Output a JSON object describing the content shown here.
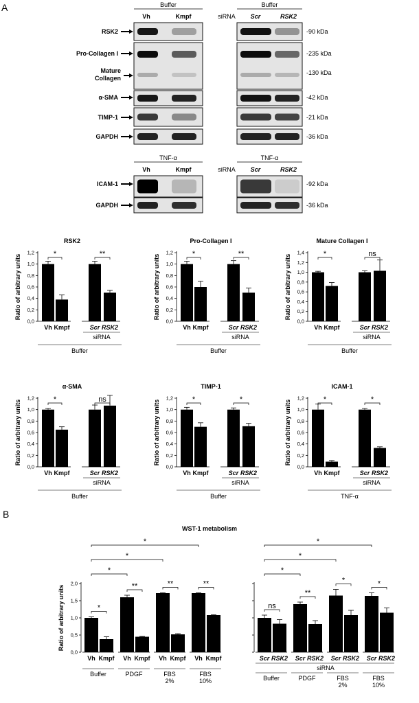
{
  "panels": {
    "a": "A",
    "b": "B"
  },
  "blots": {
    "row_labels": [
      "RSK2",
      "Pro-Collagen I",
      "Mature Collagen I",
      "α-SMA",
      "TIMP-1",
      "GAPDH",
      "ICAM-1",
      "GAPDH"
    ],
    "left_condition_top": "Buffer",
    "right_condition_top": "Buffer",
    "left_condition_bottom": "TNF-α",
    "right_condition_bottom": "TNF-α",
    "left_lanes": [
      "Vh",
      "Kmpf"
    ],
    "right_lanes": [
      "Scr",
      "RSK2"
    ],
    "sirna_label": "siRNA",
    "kda_markers": [
      "-90 kDa",
      "-235 kDa",
      "-130 kDa",
      "-42 kDa",
      "-21 kDa",
      "-36 kDa",
      "-92 kDa",
      "-36 kDa"
    ]
  },
  "chart_data": [
    {
      "type": "bar",
      "title": "RSK2",
      "ylabel": "Ratio of arbitrary units",
      "ylim": [
        0,
        1.2
      ],
      "yticks": [
        "0,0",
        "0,2",
        "0,4",
        "0,6",
        "0,8",
        "1,0",
        "1,2"
      ],
      "categories": [
        "Vh",
        "Kmpf",
        "Scr",
        "RSK2"
      ],
      "values": [
        1.0,
        0.38,
        1.0,
        0.5
      ],
      "errors": [
        0.05,
        0.08,
        0.05,
        0.04
      ],
      "significance": [
        "*",
        "**"
      ],
      "group_labels": [
        "siRNA"
      ],
      "condition": "Buffer"
    },
    {
      "type": "bar",
      "title": "Pro-Collagen I",
      "ylabel": "Ratio of arbitrary units",
      "ylim": [
        0,
        1.2
      ],
      "yticks": [
        "0,0",
        "0,2",
        "0,4",
        "0,6",
        "0,8",
        "1,0",
        "1,2"
      ],
      "categories": [
        "Vh",
        "Kmpf",
        "Scr",
        "RSK2"
      ],
      "values": [
        1.0,
        0.6,
        1.0,
        0.5
      ],
      "errors": [
        0.05,
        0.1,
        0.06,
        0.08
      ],
      "significance": [
        "*",
        "**"
      ],
      "group_labels": [
        "siRNA"
      ],
      "condition": "Buffer"
    },
    {
      "type": "bar",
      "title": "Mature Collagen I",
      "ylabel": "Ratio of arbitrary units",
      "ylim": [
        0,
        1.4
      ],
      "yticks": [
        "0,0",
        "0,2",
        "0,4",
        "0,6",
        "0,8",
        "1,0",
        "1,2",
        "1,4"
      ],
      "categories": [
        "Vh",
        "Kmpf",
        "Scr",
        "RSK2"
      ],
      "values": [
        1.0,
        0.72,
        1.0,
        1.03
      ],
      "errors": [
        0.02,
        0.07,
        0.03,
        0.22
      ],
      "significance": [
        "*",
        "ns"
      ],
      "group_labels": [
        "siRNA"
      ],
      "condition": "Buffer"
    },
    {
      "type": "bar",
      "title": "α-SMA",
      "ylabel": "Ratio of arbitrary units",
      "ylim": [
        0,
        1.2
      ],
      "yticks": [
        "0,0",
        "0,2",
        "0,4",
        "0,6",
        "0,8",
        "1,0",
        "1,2"
      ],
      "categories": [
        "Vh",
        "Kmpf",
        "Scr",
        "RSK2"
      ],
      "values": [
        1.0,
        0.65,
        1.0,
        1.07
      ],
      "errors": [
        0.02,
        0.05,
        0.08,
        0.18
      ],
      "significance": [
        "*",
        "ns"
      ],
      "group_labels": [
        "siRNA"
      ],
      "condition": "Buffer"
    },
    {
      "type": "bar",
      "title": "TIMP-1",
      "ylabel": "Ratio of arbitrary units",
      "ylim": [
        0,
        1.2
      ],
      "yticks": [
        "0,0",
        "0,2",
        "0,4",
        "0,6",
        "0,8",
        "1,0",
        "1,2"
      ],
      "categories": [
        "Vh",
        "Kmpf",
        "Scr",
        "RSK2"
      ],
      "values": [
        1.0,
        0.7,
        1.0,
        0.71
      ],
      "errors": [
        0.04,
        0.07,
        0.03,
        0.05
      ],
      "significance": [
        "*",
        "*"
      ],
      "group_labels": [
        "siRNA"
      ],
      "condition": "Buffer"
    },
    {
      "type": "bar",
      "title": "ICAM-1",
      "ylabel": "Ratio of arbitrary units",
      "ylim": [
        0,
        1.2
      ],
      "yticks": [
        "0,0",
        "0,2",
        "0,4",
        "0,6",
        "0,8",
        "1,0",
        "1,2"
      ],
      "categories": [
        "Vh",
        "Kmpf",
        "Scr",
        "RSK2"
      ],
      "values": [
        1.0,
        0.09,
        1.0,
        0.33
      ],
      "errors": [
        0.1,
        0.02,
        0.02,
        0.02
      ],
      "significance": [
        "*",
        "*"
      ],
      "group_labels": [
        "siRNA"
      ],
      "condition": "TNF-α"
    },
    {
      "type": "bar",
      "title": "WST-1 metabolism",
      "ylabel": "Ratio of arbitrary units",
      "ylim": [
        0,
        2.0
      ],
      "yticks": [
        "0,0",
        "0,5",
        "1,0",
        "1,5",
        "2,0"
      ],
      "categories": [
        "Vh",
        "Kmpf",
        "Vh",
        "Kmpf",
        "Vh",
        "Kmpf",
        "Vh",
        "Kmpf"
      ],
      "values": [
        1.0,
        0.38,
        1.6,
        0.45,
        1.72,
        0.52,
        1.72,
        1.08
      ],
      "errors": [
        0.03,
        0.07,
        0.06,
        0.01,
        0.01,
        0.02,
        0.01,
        0.01
      ],
      "groups": [
        "Buffer",
        "PDGF",
        "FBS 2%",
        "FBS 10%"
      ],
      "pair_significance": [
        "*",
        "**",
        "**",
        "**"
      ],
      "vs_buffer_significance": [
        "*",
        "*",
        "*"
      ]
    },
    {
      "type": "bar",
      "title": "",
      "ylabel": "",
      "ylim": [
        0,
        2.0
      ],
      "categories": [
        "Scr",
        "RSK2",
        "Scr",
        "RSK2",
        "Scr",
        "RSK2",
        "Scr",
        "RSK2"
      ],
      "values": [
        1.0,
        0.83,
        1.4,
        0.82,
        1.65,
        1.08,
        1.64,
        1.15
      ],
      "errors": [
        0.08,
        0.12,
        0.06,
        0.1,
        0.18,
        0.14,
        0.09,
        0.14
      ],
      "groups": [
        "Buffer",
        "PDGF",
        "FBS 2%",
        "FBS 10%"
      ],
      "group_labels": [
        "siRNA"
      ],
      "pair_significance": [
        "ns",
        "**",
        "*",
        "*"
      ],
      "vs_buffer_significance": [
        "*",
        "*",
        "*"
      ]
    }
  ]
}
